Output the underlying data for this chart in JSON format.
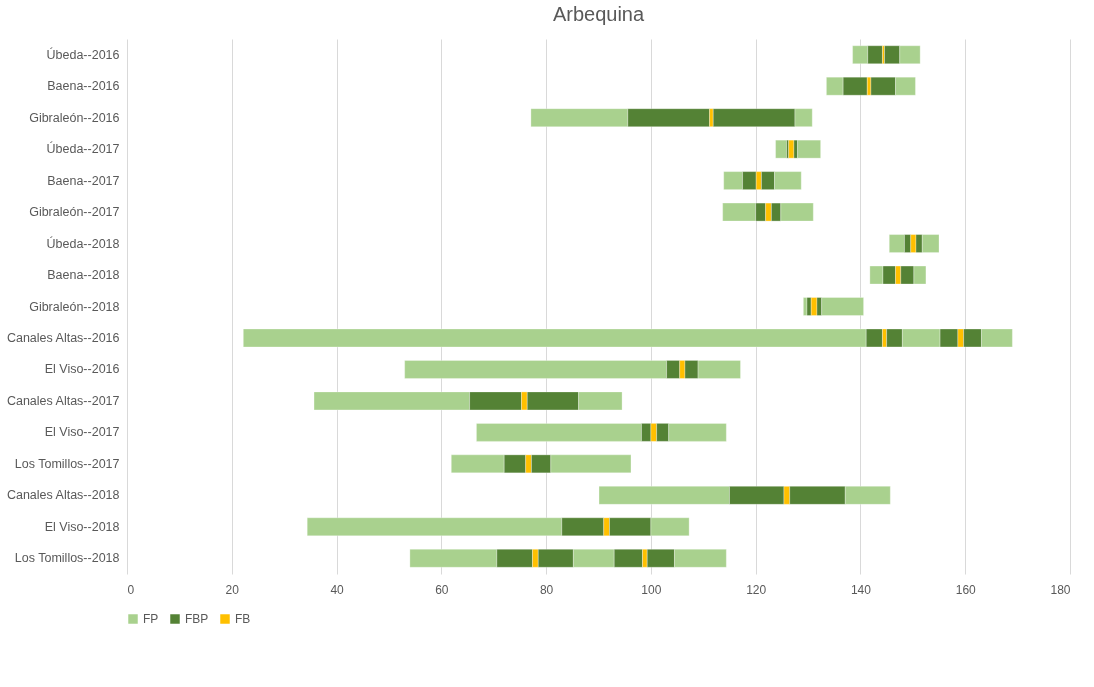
{
  "chart_data": {
    "type": "bar",
    "orientation": "horizontal",
    "title": "Arbequina",
    "categories": [
      "Úbeda--2016",
      "Baena--2016",
      "Gibraleón--2016",
      "Úbeda--2017",
      "Baena--2017",
      "Gibraleón--2017",
      "Úbeda--2018",
      "Baena--2018",
      "Gibraleón--2018",
      "Canales Altas--2016",
      "El Viso--2016",
      "Canales Altas--2017",
      "El Viso--2017",
      "Los Tomillos--2017",
      "Canales Altas--2018",
      "El Viso--2018",
      "Los Tomillos--2018"
    ],
    "series": [
      {
        "name": "FP",
        "color": "#a9d18e",
        "base": [
          138.5,
          133.5,
          77.1,
          123.8,
          113.9,
          113.7,
          145.5,
          141.8,
          129.1,
          22.2,
          53.0,
          35.7,
          66.7,
          61.9,
          90.1,
          34.4,
          54.0
        ],
        "values": [
          2.9,
          3.2,
          18.5,
          2.1,
          3.6,
          6.3,
          2.9,
          2.5,
          0.7,
          118.9,
          50.0,
          29.7,
          31.5,
          10.1,
          24.9,
          48.6,
          16.6
        ]
      },
      {
        "name": "FBP",
        "color": "#548235",
        "base": [
          141.4,
          136.7,
          95.6,
          125.9,
          117.5,
          120.0,
          148.4,
          144.3,
          129.8,
          141.1,
          103.0,
          65.4,
          98.2,
          72.0,
          115.0,
          83.0,
          70.6
        ],
        "values": [
          2.8,
          4.6,
          15.6,
          0.4,
          2.6,
          1.9,
          1.2,
          2.4,
          0.8,
          3.1,
          2.5,
          9.9,
          1.8,
          4.1,
          10.4,
          8.0,
          6.8
        ]
      },
      {
        "name": "FB",
        "color": "#ffc000",
        "base": [
          144.2,
          141.3,
          111.2,
          126.3,
          120.1,
          121.9,
          149.6,
          146.7,
          130.6,
          144.2,
          105.5,
          75.3,
          100.0,
          76.1,
          125.4,
          91.0,
          77.4
        ],
        "values": [
          0.4,
          0.7,
          0.7,
          1.0,
          1.0,
          1.1,
          1.0,
          1.0,
          1.1,
          0.8,
          1.0,
          1.1,
          1.1,
          1.1,
          1.1,
          1.1,
          1.1
        ]
      },
      {
        "color": "#548235",
        "base": [
          144.6,
          142.0,
          111.9,
          127.3,
          121.1,
          123.0,
          150.6,
          147.7,
          131.7,
          145.0,
          106.5,
          76.4,
          101.1,
          77.2,
          126.5,
          92.1,
          78.5
        ],
        "values": [
          2.9,
          4.7,
          15.6,
          0.7,
          2.5,
          1.8,
          1.2,
          2.5,
          0.9,
          3.0,
          2.5,
          9.8,
          2.3,
          3.7,
          10.6,
          7.9,
          6.7
        ]
      },
      {
        "color": "#a9d18e",
        "base": [
          147.5,
          146.7,
          127.5,
          128.0,
          123.6,
          124.8,
          151.8,
          150.2,
          132.6,
          148.0,
          109.0,
          86.2,
          103.4,
          80.9,
          137.1,
          100.0,
          85.2
        ],
        "values": [
          3.9,
          3.8,
          3.3,
          4.4,
          5.1,
          6.2,
          3.2,
          2.3,
          8.0,
          7.2,
          8.1,
          8.3,
          11.0,
          15.3,
          8.6,
          7.3,
          7.8
        ]
      },
      {
        "color": "#548235",
        "base": [
          null,
          null,
          null,
          null,
          null,
          null,
          null,
          null,
          null,
          155.2,
          null,
          null,
          null,
          null,
          null,
          null,
          93.0
        ],
        "values": [
          null,
          null,
          null,
          null,
          null,
          null,
          null,
          null,
          null,
          3.4,
          null,
          null,
          null,
          null,
          null,
          null,
          5.4
        ]
      },
      {
        "color": "#ffc000",
        "base": [
          null,
          null,
          null,
          null,
          null,
          null,
          null,
          null,
          null,
          158.6,
          null,
          null,
          null,
          null,
          null,
          null,
          98.4
        ],
        "values": [
          null,
          null,
          null,
          null,
          null,
          null,
          null,
          null,
          null,
          1.1,
          null,
          null,
          null,
          null,
          null,
          null,
          0.9
        ]
      },
      {
        "color": "#548235",
        "base": [
          null,
          null,
          null,
          null,
          null,
          null,
          null,
          null,
          null,
          159.7,
          null,
          null,
          null,
          null,
          null,
          null,
          99.3
        ],
        "values": [
          null,
          null,
          null,
          null,
          null,
          null,
          null,
          null,
          null,
          3.4,
          null,
          null,
          null,
          null,
          null,
          null,
          5.2
        ]
      },
      {
        "color": "#a9d18e",
        "base": [
          null,
          null,
          null,
          null,
          null,
          null,
          null,
          null,
          null,
          163.1,
          null,
          null,
          null,
          null,
          null,
          null,
          104.5
        ],
        "values": [
          null,
          null,
          null,
          null,
          null,
          null,
          null,
          null,
          null,
          5.9,
          null,
          null,
          null,
          null,
          null,
          null,
          9.9
        ]
      }
    ],
    "xlim": [
      0,
      180
    ],
    "xticks": [
      0,
      20,
      40,
      60,
      80,
      100,
      120,
      140,
      160,
      180
    ],
    "grid": "x",
    "legend": "bottom"
  }
}
